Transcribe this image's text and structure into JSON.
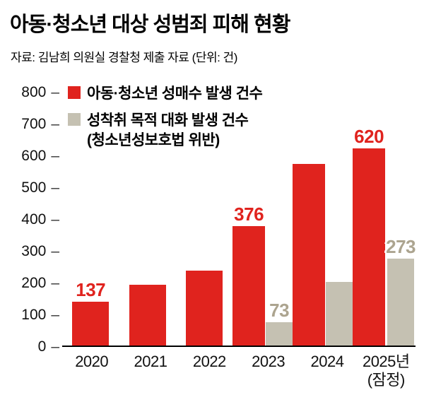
{
  "header": {
    "title": "아동·청소년 대상 성범죄 피해 현황",
    "source": "자료: 김남희 의원실 경찰청 제출 자료 (단위: 건)"
  },
  "legend": {
    "items": [
      {
        "label": "아동·청소년 성매수 발생 건수",
        "color": "#e0231e"
      },
      {
        "label": "성착취 목적 대화 발생 건수",
        "sublabel": "(청소년성보호법 위반)",
        "color": "#c5c1b2"
      }
    ]
  },
  "chart_data": {
    "type": "bar",
    "title": "아동·청소년 대상 성범죄 피해 현황",
    "categories": [
      "2020",
      "2021",
      "2022",
      "2023",
      "2024",
      "2025년(잠정)"
    ],
    "x_labels": [
      [
        "2020"
      ],
      [
        "2021"
      ],
      [
        "2022"
      ],
      [
        "2023"
      ],
      [
        "2024"
      ],
      [
        "2025년",
        "(잠정)"
      ]
    ],
    "series": [
      {
        "name": "아동·청소년 성매수 발생 건수",
        "color": "#e0231e",
        "label_color": "#e0231e",
        "values": [
          137,
          190,
          235,
          376,
          570,
          620
        ],
        "labeled": [
          true,
          false,
          false,
          true,
          false,
          true
        ]
      },
      {
        "name": "성착취 목적 대화 발생 건수(청소년성보호법 위반)",
        "color": "#c5c1b2",
        "label_color": "#aca48f",
        "values": [
          null,
          null,
          null,
          73,
          200,
          273
        ],
        "labeled": [
          false,
          false,
          false,
          true,
          false,
          true
        ]
      }
    ],
    "ylim": [
      0,
      800
    ],
    "yticks": [
      800,
      700,
      600,
      500,
      400,
      300,
      200,
      100,
      0
    ],
    "unit": "건",
    "grid": false,
    "legend_position": "top-left"
  }
}
